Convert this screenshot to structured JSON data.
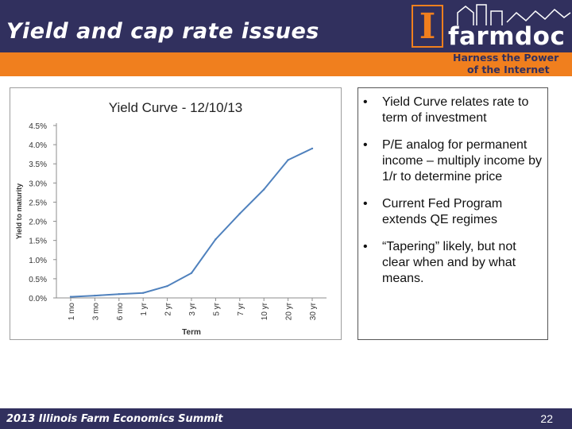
{
  "slide": {
    "title": "Yield and cap rate issues",
    "footer": "2013 Illinois Farm Economics Summit",
    "page_number": "22"
  },
  "logo": {
    "letter": "I",
    "name": "farmdoc",
    "tagline_line1": "Harness the Power",
    "tagline_line2": "of the Internet"
  },
  "bullets": [
    "Yield Curve relates rate to term of investment",
    "P/E analog for permanent income – multiply income by 1/r to determine price",
    "Current Fed Program extends QE regimes",
    "“Tapering” likely, but not clear when and by what means."
  ],
  "bullet_glyph": "•",
  "colors": {
    "header": "#31305e",
    "accent": "#f07f1e",
    "series": "#4f81bd"
  },
  "chart_data": {
    "type": "line",
    "title": "Yield Curve - 12/10/13",
    "xlabel": "Term",
    "ylabel": "Yield to maturity",
    "categories": [
      "1 mo",
      "3 mo",
      "6 mo",
      "1 yr",
      "2 yr",
      "3 yr",
      "5 yr",
      "7 yr",
      "10 yr",
      "20 yr",
      "30 yr"
    ],
    "y_ticks": [
      "0.0%",
      "0.5%",
      "1.0%",
      "1.5%",
      "2.0%",
      "2.5%",
      "3.0%",
      "3.5%",
      "4.0%",
      "4.5%"
    ],
    "ylim": [
      0,
      4.5
    ],
    "grid": false,
    "legend": "none",
    "series": [
      {
        "values": [
          0.03,
          0.06,
          0.1,
          0.13,
          0.31,
          0.65,
          1.53,
          2.2,
          2.83,
          3.6,
          3.9
        ]
      }
    ]
  }
}
